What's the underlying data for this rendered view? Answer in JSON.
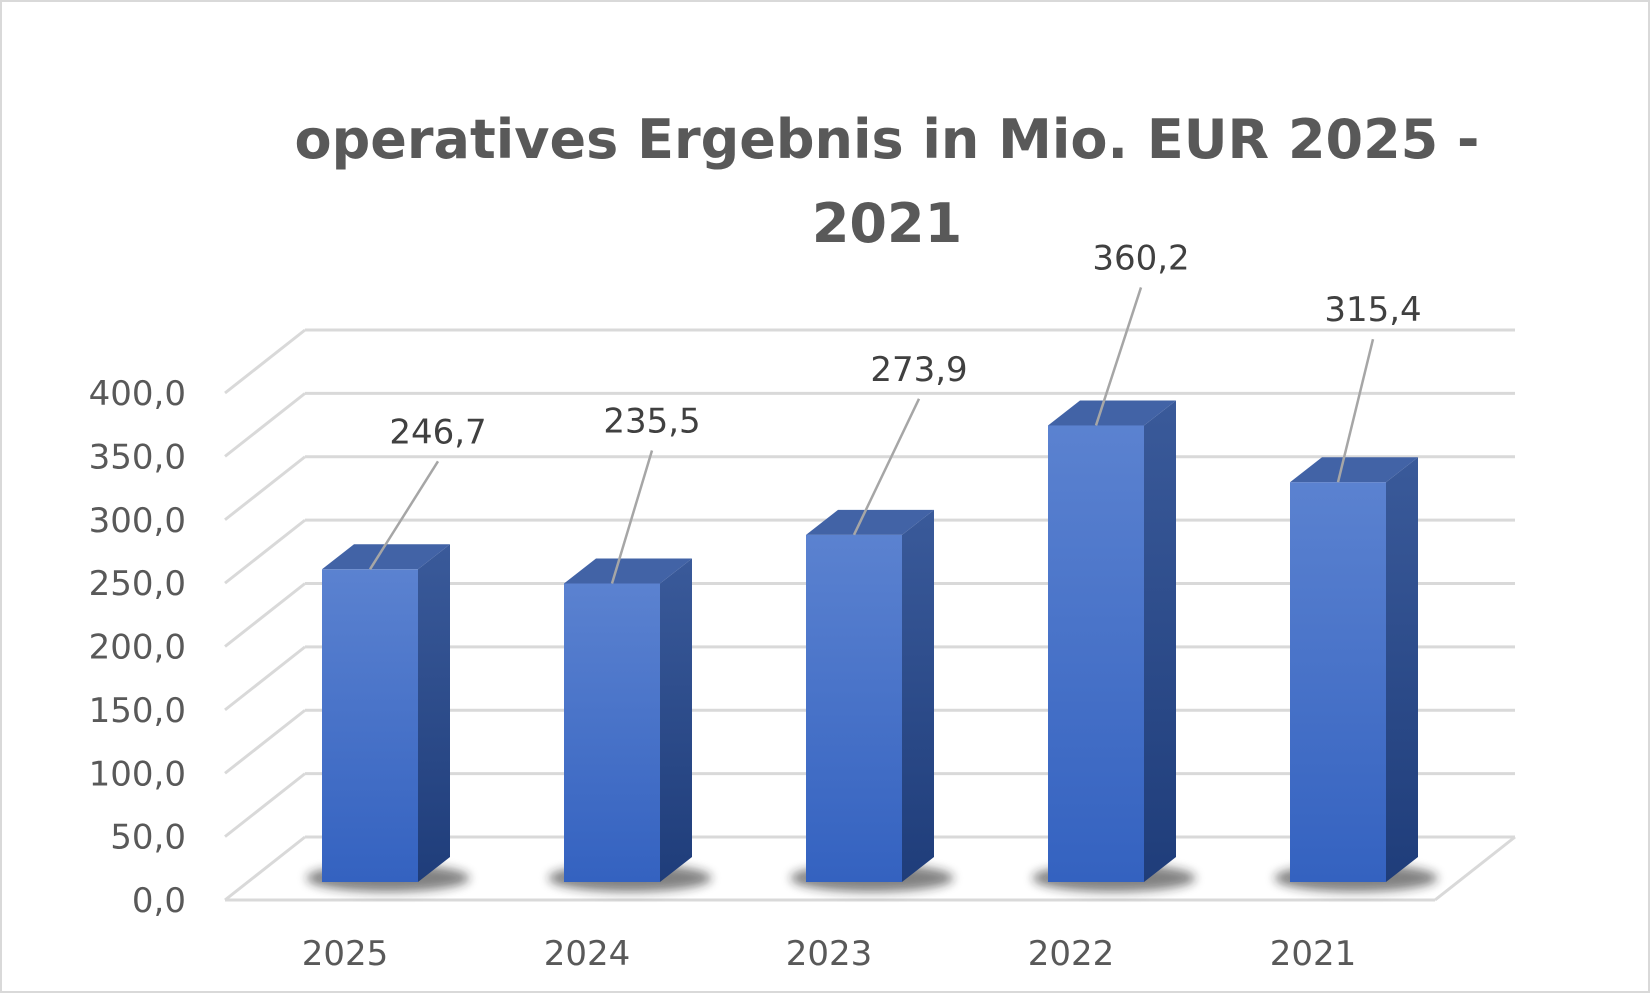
{
  "chart_data": {
    "type": "bar",
    "title": "operatives Ergebnis in Mio. EUR 2025 - 2021",
    "categories": [
      "2025",
      "2024",
      "2023",
      "2022",
      "2021"
    ],
    "values": [
      246.7,
      235.5,
      273.9,
      360.2,
      315.4
    ],
    "value_labels": [
      "246,7",
      "235,5",
      "273,9",
      "360,2",
      "315,4"
    ],
    "y_ticks": [
      "0,0",
      "50,0",
      "100,0",
      "150,0",
      "200,0",
      "250,0",
      "300,0",
      "350,0",
      "400,0"
    ],
    "ylim": [
      0,
      400
    ],
    "grid": true,
    "style": "3d-column",
    "colors": {
      "bar_front": "#4472c4",
      "bar_side": "#2e4d8f",
      "bar_top": "#3f63a8",
      "grid": "#d9d9d9",
      "text": "#595959"
    }
  }
}
